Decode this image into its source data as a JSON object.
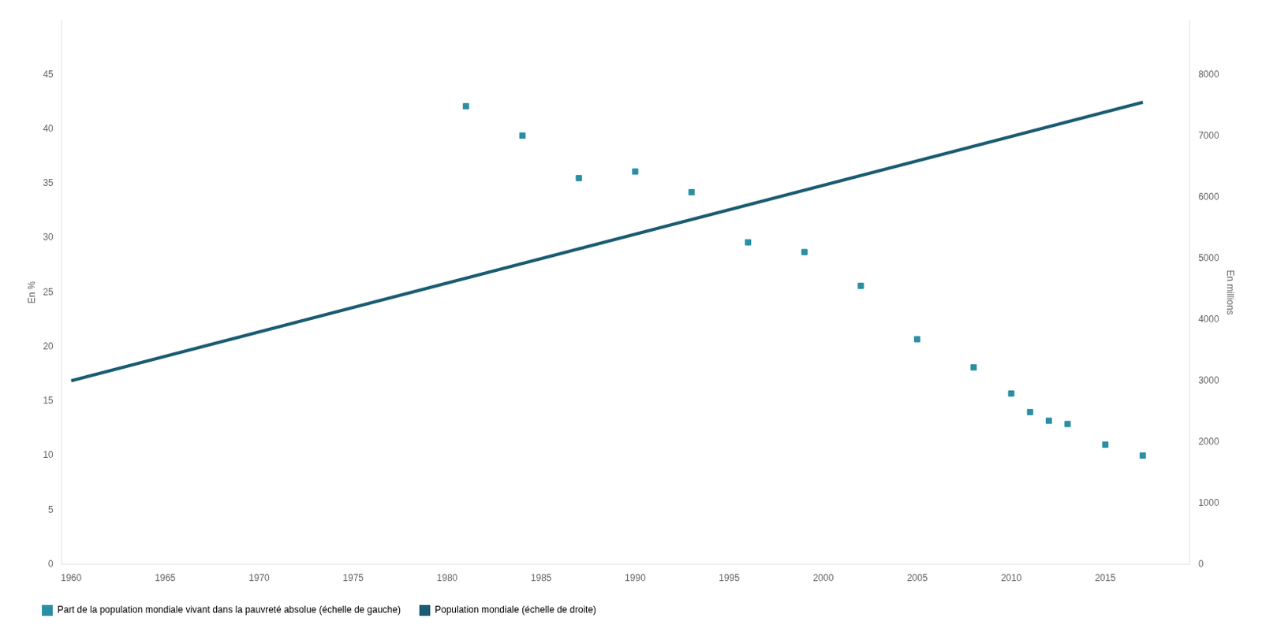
{
  "chart_data": {
    "type": "scatter",
    "series": [
      {
        "name": "Part de la population mondiale vivant dans la pauvreté absolue (échelle de gauche)",
        "type": "scatter",
        "marker": "square",
        "color": "#2a8fa3",
        "x": [
          1981,
          1984,
          1987,
          1990,
          1993,
          1996,
          1999,
          2002,
          2005,
          2008,
          2010,
          2011,
          2012,
          2013,
          2015,
          2017
        ],
        "values": [
          42.1,
          39.4,
          35.5,
          36.1,
          34.2,
          29.6,
          28.7,
          25.6,
          20.7,
          18.1,
          15.7,
          14.0,
          13.2,
          12.9,
          11.0,
          10.0
        ]
      },
      {
        "name": "Population mondiale (échelle de droite)",
        "type": "line",
        "color": "#1a5c72",
        "axis": "y2",
        "x": [
          1960,
          2017
        ],
        "values": [
          3000,
          7550
        ]
      }
    ],
    "ylabel": "En %",
    "y2label": "En millions",
    "xlim": [
      1959.5,
      2019.5
    ],
    "xticks": [
      1960,
      1965,
      1970,
      1975,
      1980,
      1985,
      1990,
      1995,
      2000,
      2005,
      2010,
      2015
    ],
    "ylim": [
      0,
      50
    ],
    "yticks": [
      0,
      5,
      10,
      15,
      20,
      25,
      30,
      35,
      40,
      45
    ],
    "y2lim": [
      0,
      8889
    ],
    "y2ticks": [
      0,
      1000,
      2000,
      3000,
      4000,
      5000,
      6000,
      7000,
      8000
    ],
    "grid": false,
    "legend": "lower left"
  }
}
